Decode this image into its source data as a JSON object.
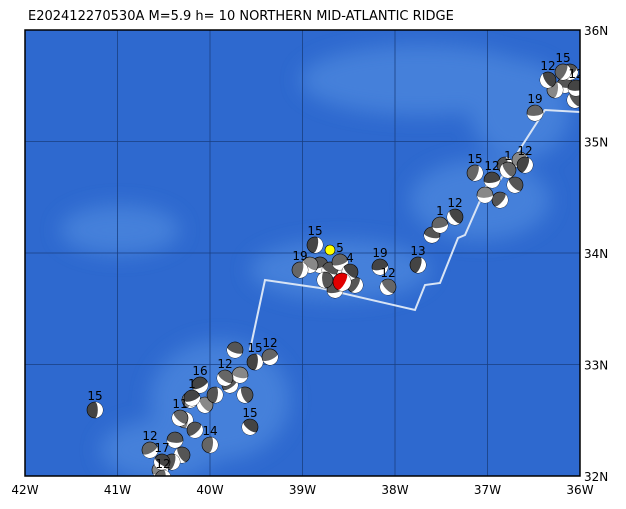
{
  "title": "E202412270530A  M=5.9  h= 10  NORTHERN MID-ATLANTIC RIDGE",
  "lat_labels": [
    "36N",
    "35N",
    "34N",
    "33N",
    "32N"
  ],
  "lon_labels": [
    "42W",
    "41W",
    "40W",
    "39W",
    "38W",
    "37W",
    "36W"
  ],
  "events": [
    {
      "label": "15"
    },
    {
      "label": "12"
    },
    {
      "label": "17"
    },
    {
      "label": "12"
    },
    {
      "label": "16"
    },
    {
      "label": "12"
    },
    {
      "label": "15"
    },
    {
      "label": "12"
    },
    {
      "label": "15"
    },
    {
      "label": "14"
    },
    {
      "label": "1"
    },
    {
      "label": "11"
    },
    {
      "label": "15"
    },
    {
      "label": "5"
    },
    {
      "label": "4"
    },
    {
      "label": "19"
    },
    {
      "label": "19"
    },
    {
      "label": "12"
    },
    {
      "label": "13"
    },
    {
      "label": "1"
    },
    {
      "label": "12"
    },
    {
      "label": "15"
    },
    {
      "label": "12"
    },
    {
      "label": "1"
    },
    {
      "label": "12"
    },
    {
      "label": "19"
    },
    {
      "label": "12"
    },
    {
      "label": "15"
    },
    {
      "label": "12"
    }
  ]
}
